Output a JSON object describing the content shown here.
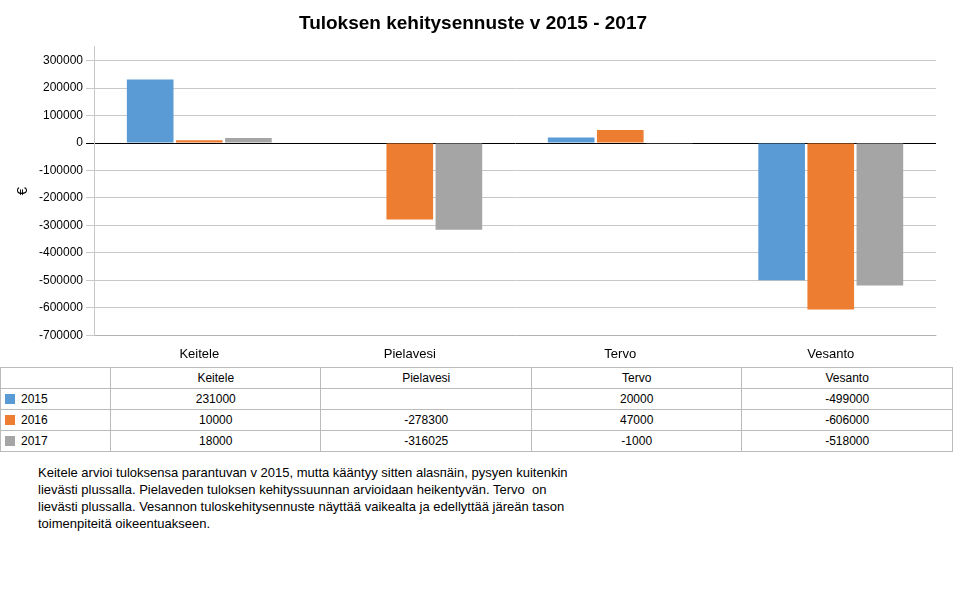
{
  "chart_data": {
    "type": "bar",
    "title": "Tuloksen kehitysennuste v 2015 - 2017",
    "categories": [
      "Keitele",
      "Pielavesi",
      "Tervo",
      "Vesanto"
    ],
    "series": [
      {
        "name": "2015",
        "color": "#5b9bd5",
        "values": [
          231000,
          0,
          20000,
          -499000
        ]
      },
      {
        "name": "2016",
        "color": "#ed7d31",
        "values": [
          10000,
          -278300,
          47000,
          -606000
        ]
      },
      {
        "name": "2017",
        "color": "#a5a5a5",
        "values": [
          18000,
          -316025,
          -1000,
          -518000
        ]
      }
    ],
    "ylim": [
      -700000,
      350000
    ],
    "yticks": [
      -700000,
      -600000,
      -500000,
      -400000,
      -300000,
      -200000,
      -100000,
      0,
      100000,
      200000,
      300000
    ],
    "ylabel": "€",
    "grid": true,
    "table": {
      "columns": [
        "Keitele",
        "Pielavesi",
        "Tervo",
        "Vesanto"
      ],
      "rows": [
        {
          "label": "2015",
          "values": [
            231000,
            null,
            20000,
            -499000
          ]
        },
        {
          "label": "2016",
          "values": [
            10000,
            -278300,
            47000,
            -606000
          ]
        },
        {
          "label": "2017",
          "values": [
            18000,
            -316025,
            -1000,
            -518000
          ]
        }
      ]
    },
    "annotation": "Keitele arvioi tuloksensa parantuvan v 2015, mutta kääntyy sitten alasпäin, pysyen kuitenkin\nlievästi plussalla. Pielaveden tuloksen kehityssuunnan arvioidaan heikentyvän. Tervo  on\nlievästi plussalla. Vesannon tuloskehitysennuste näyttää vaikealta ja edellyttää järeän tason\ntoimenpiteitä oikeentuakseen."
  }
}
